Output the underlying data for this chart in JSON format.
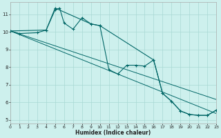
{
  "bg_color": "#cdf0ed",
  "grid_color": "#a8d8d4",
  "line_color": "#006666",
  "xlabel": "Humidex (Indice chaleur)",
  "xlim": [
    0,
    23
  ],
  "ylim": [
    4.8,
    11.7
  ],
  "yticks": [
    5,
    6,
    7,
    8,
    9,
    10,
    11
  ],
  "xticks": [
    0,
    1,
    2,
    3,
    4,
    5,
    6,
    7,
    8,
    9,
    10,
    11,
    12,
    13,
    14,
    15,
    16,
    17,
    18,
    19,
    20,
    21,
    22,
    23
  ],
  "line1_x": [
    0,
    1,
    3,
    4,
    5,
    5.5,
    6,
    7,
    8,
    9,
    10,
    11,
    12,
    13,
    14,
    15,
    16,
    17,
    18,
    19,
    20,
    21,
    22,
    23
  ],
  "line1_y": [
    10.05,
    9.9,
    9.95,
    10.1,
    11.25,
    11.35,
    10.5,
    10.15,
    10.8,
    10.45,
    10.35,
    7.85,
    7.6,
    8.1,
    8.1,
    8.05,
    8.4,
    6.5,
    6.05,
    5.5,
    5.3,
    5.25,
    5.25,
    5.55
  ],
  "line2_x": [
    0,
    4,
    5,
    9,
    10,
    16,
    17,
    18,
    19,
    20,
    21,
    22,
    23
  ],
  "line2_y": [
    10.05,
    10.1,
    11.35,
    10.45,
    10.35,
    8.4,
    6.5,
    6.05,
    5.5,
    5.3,
    5.25,
    5.25,
    5.55
  ],
  "trend1_x": [
    0,
    23
  ],
  "trend1_y": [
    10.05,
    5.35
  ],
  "trend2_x": [
    0,
    23
  ],
  "trend2_y": [
    10.05,
    6.15
  ]
}
